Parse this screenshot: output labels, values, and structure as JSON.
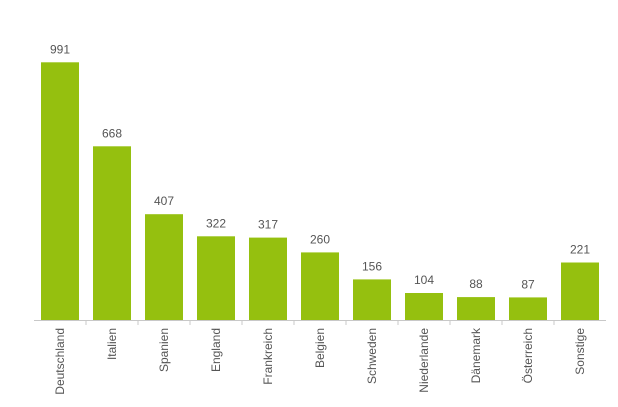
{
  "chart_data": {
    "type": "bar",
    "categories": [
      "Deutschland",
      "Italien",
      "Spanien",
      "England",
      "Frankreich",
      "Belgien",
      "Schweden",
      "Niederlande",
      "Dänemark",
      "Österreich",
      "Sonstige"
    ],
    "values": [
      991,
      668,
      407,
      322,
      317,
      260,
      156,
      104,
      88,
      87,
      221
    ],
    "title": "",
    "xlabel": "",
    "ylabel": "",
    "ylim": [
      0,
      1000
    ],
    "grid": false,
    "legend": "none",
    "data_labels": true,
    "bar_color": "#95c00f",
    "axis_color": "#c8c8c8",
    "label_color": "#555555"
  }
}
